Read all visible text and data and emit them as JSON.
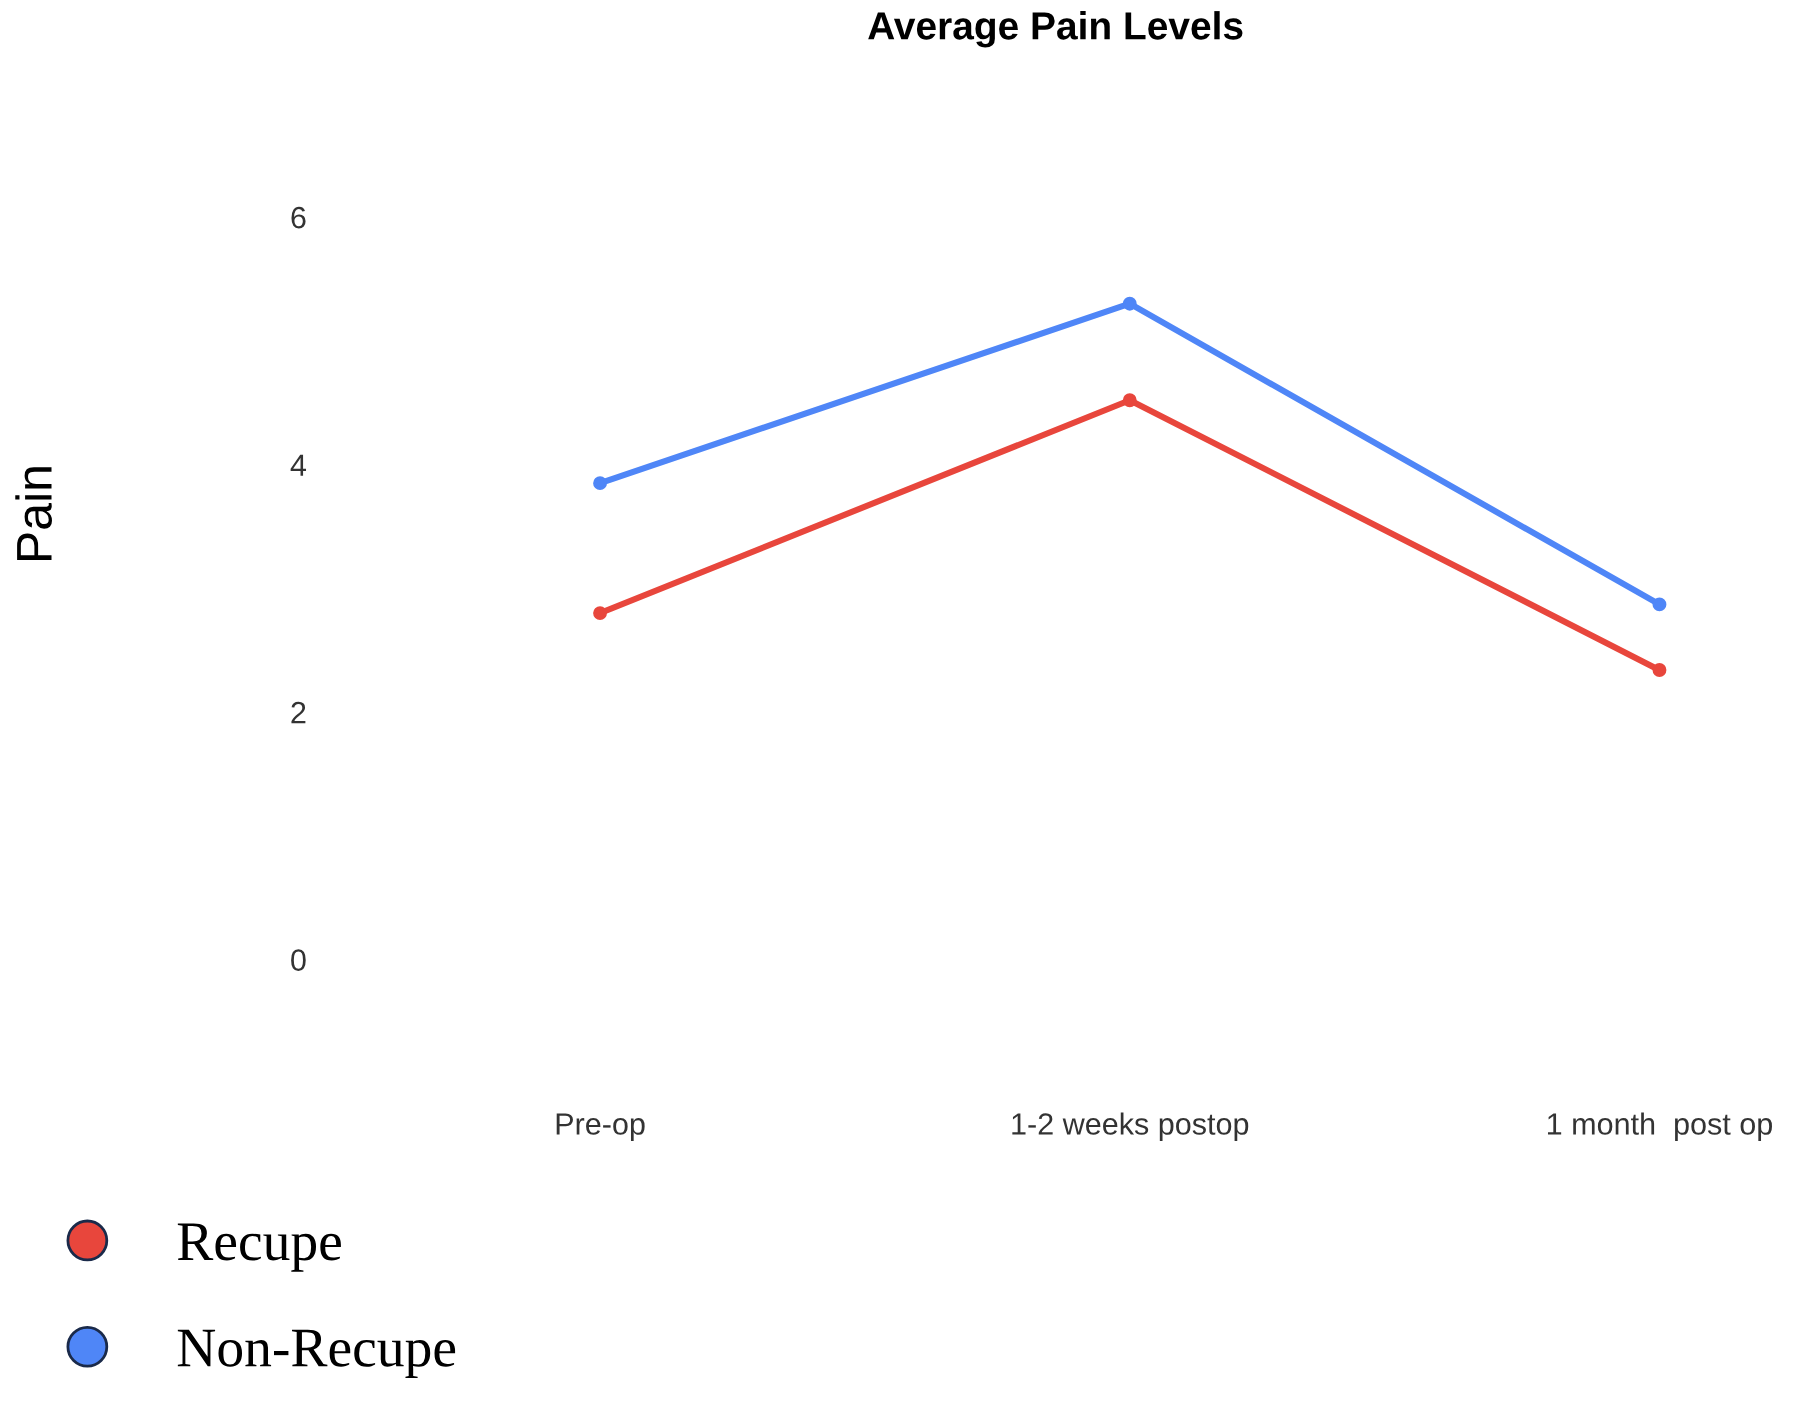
{
  "chart_data": {
    "type": "line",
    "title": "Average Pain Levels",
    "ylabel": "Pain",
    "categories": [
      "Pre-op",
      "1-2 weeks postop",
      "1 month  post op"
    ],
    "series": [
      {
        "name": "Recupe",
        "color": "#e8463c",
        "values": [
          2.8,
          4.52,
          2.34
        ]
      },
      {
        "name": "Non-Recupe",
        "color": "#4f86f7",
        "values": [
          3.85,
          5.3,
          2.87
        ]
      }
    ],
    "ylim": [
      0,
      6
    ],
    "yticks": [
      0,
      2,
      4,
      6
    ],
    "grid": false,
    "legend": "bottom left",
    "marker": "circle",
    "line_style": "solid"
  }
}
